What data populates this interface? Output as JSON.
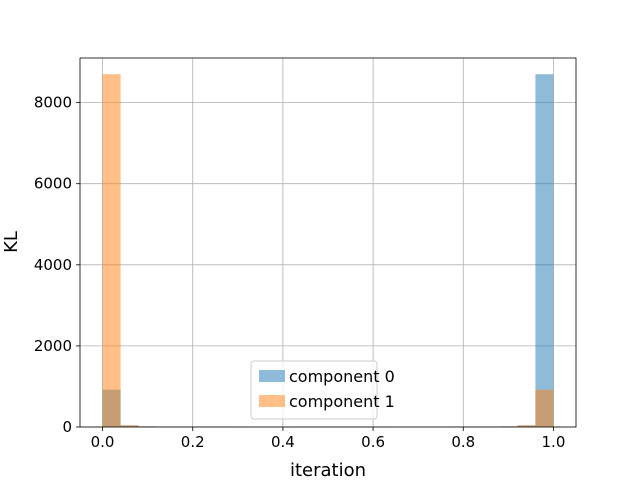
{
  "chart_data": {
    "type": "bar",
    "subtype": "histogram-overlay",
    "title": "",
    "xlabel": "iteration",
    "ylabel": "KL",
    "xlim": [
      -0.05,
      1.05
    ],
    "ylim": [
      0,
      9100
    ],
    "xticks": [
      0.0,
      0.2,
      0.4,
      0.6,
      0.8,
      1.0
    ],
    "xtick_labels": [
      "0.0",
      "0.2",
      "0.4",
      "0.6",
      "0.8",
      "1.0"
    ],
    "yticks": [
      0,
      2000,
      4000,
      6000,
      8000
    ],
    "ytick_labels": [
      "0",
      "2000",
      "4000",
      "6000",
      "8000"
    ],
    "grid": true,
    "legend_position": "bottom-center",
    "bin_edges": [
      0.0,
      0.04,
      0.08,
      0.12,
      0.16,
      0.2,
      0.24,
      0.28,
      0.32,
      0.36,
      0.4,
      0.44,
      0.48,
      0.52,
      0.56,
      0.6,
      0.64,
      0.68,
      0.72,
      0.76,
      0.8,
      0.84,
      0.88,
      0.92,
      0.96,
      1.0
    ],
    "series": [
      {
        "name": "component 0",
        "color": "#1f77b4",
        "alpha": 0.5,
        "values": [
          920,
          40,
          15,
          10,
          5,
          8,
          5,
          4,
          3,
          3,
          4,
          4,
          5,
          12,
          5,
          4,
          3,
          3,
          3,
          4,
          10,
          8,
          15,
          40,
          8700
        ]
      },
      {
        "name": "component 1",
        "color": "#ff7f0e",
        "alpha": 0.5,
        "values": [
          8700,
          40,
          15,
          10,
          5,
          8,
          5,
          4,
          3,
          3,
          4,
          12,
          5,
          4,
          5,
          4,
          3,
          3,
          3,
          4,
          10,
          8,
          15,
          40,
          920
        ]
      }
    ]
  }
}
